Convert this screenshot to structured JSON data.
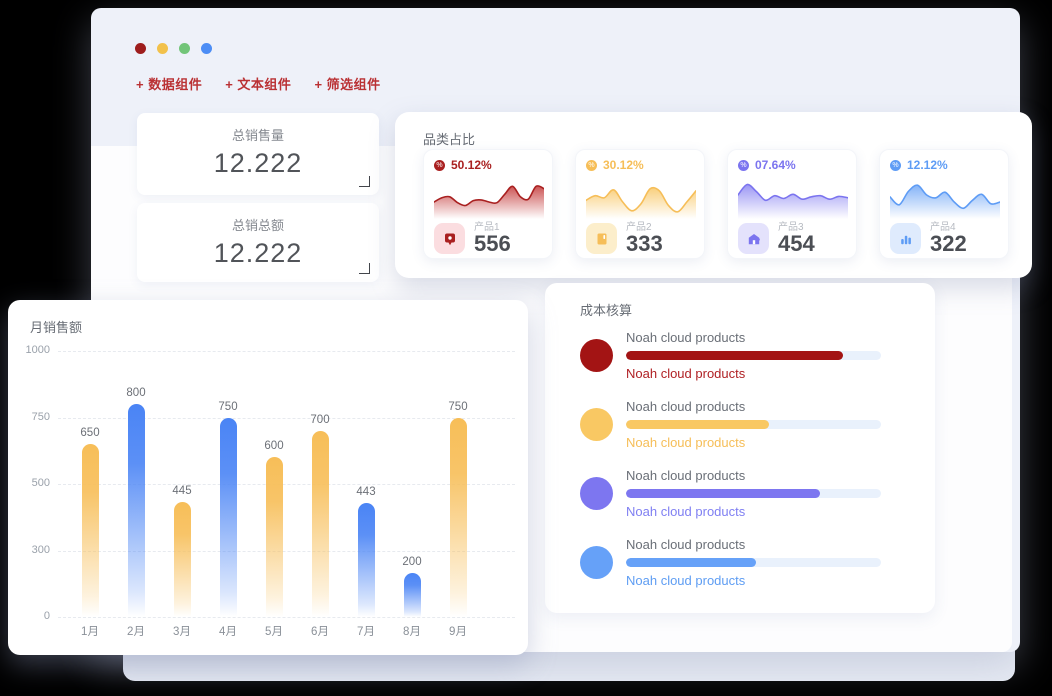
{
  "window": {
    "dots": [
      {
        "name": "red",
        "color": "#9e1d1d"
      },
      {
        "name": "yellow",
        "color": "#f2c14b"
      },
      {
        "name": "green",
        "color": "#72c579"
      },
      {
        "name": "blue",
        "color": "#4c8df5"
      }
    ]
  },
  "toolbar": {
    "accent_color": "#ba3134",
    "buttons": [
      {
        "label": "+ 数据组件"
      },
      {
        "label": "+ 文本组件"
      },
      {
        "label": "+ 筛选组件"
      }
    ]
  },
  "stats": [
    {
      "title": "总销售量",
      "value": "12.222"
    },
    {
      "title": "总销总额",
      "value": "12.222"
    }
  ],
  "category_panel": {
    "title": "品类占比"
  },
  "cost_panel": {
    "title": "成本核算"
  },
  "sales_panel": {
    "title": "月销售额"
  },
  "chart_data": [
    {
      "type": "bar",
      "title": "月销售额",
      "categories": [
        "1月",
        "2月",
        "3月",
        "4月",
        "5月",
        "6月",
        "7月",
        "8月",
        "9月"
      ],
      "values": [
        650,
        800,
        445,
        750,
        600,
        700,
        443,
        200,
        750
      ],
      "bar_colors": [
        "orange",
        "blue",
        "orange",
        "blue",
        "orange",
        "orange",
        "blue",
        "blue",
        "orange"
      ],
      "bar_palette": {
        "orange": "#f7be58",
        "blue": "#4a84f5"
      },
      "yticks": [
        0,
        300,
        500,
        750,
        1000
      ],
      "ylim": [
        0,
        1000
      ],
      "grid": true,
      "note": "y ticks rendered equally spaced (non-linear axis), dashed gridlines, gradient bars fading to transparent at baseline"
    },
    {
      "type": "area",
      "title": "品类占比",
      "legend_position": "none",
      "cards": [
        {
          "percent": "50.12%",
          "product": "产品1",
          "value": "556",
          "color": "#a92020",
          "fill": "#c23434",
          "icon": "tag-icon",
          "icon_bg": "#fbdde0",
          "points": [
            40,
            52,
            55,
            38,
            30,
            44,
            46,
            40,
            38,
            62,
            85,
            55,
            48,
            85,
            78
          ]
        },
        {
          "percent": "30.12%",
          "product": "产品2",
          "value": "333",
          "color": "#f6be58",
          "fill": "#f8c766",
          "icon": "book-icon",
          "icon_bg": "#fceecb",
          "points": [
            45,
            58,
            52,
            75,
            40,
            15,
            35,
            78,
            72,
            30,
            12,
            40,
            72
          ]
        },
        {
          "percent": "07.64%",
          "product": "产品3",
          "value": "454",
          "color": "#7b74ef",
          "fill": "#8a84f2",
          "icon": "store-icon",
          "icon_bg": "#e4e2fc",
          "points": [
            60,
            90,
            70,
            45,
            58,
            50,
            62,
            48,
            55,
            58,
            48,
            56,
            52
          ]
        },
        {
          "percent": "12.12%",
          "product": "产品4",
          "value": "322",
          "color": "#5e9cf5",
          "fill": "#6fa6f6",
          "icon": "bar-chart-icon",
          "icon_bg": "#dfebfd",
          "points": [
            55,
            32,
            70,
            88,
            60,
            52,
            68,
            40,
            22,
            45,
            62,
            35,
            40
          ]
        }
      ]
    },
    {
      "type": "bar",
      "variant": "progress",
      "title": "成本核算",
      "track_color": "#e9f1fc",
      "rows": [
        {
          "label": "Noah cloud products",
          "sublabel": "Noah cloud products",
          "percent": 85,
          "color": "#a31414",
          "text_color": "#b02125"
        },
        {
          "label": "Noah cloud products",
          "sublabel": "Noah cloud products",
          "percent": 56,
          "color": "#f9c863",
          "text_color": "#f6be58"
        },
        {
          "label": "Noah cloud products",
          "sublabel": "Noah cloud products",
          "percent": 76,
          "color": "#7d76f0",
          "text_color": "#7f7ff2"
        },
        {
          "label": "Noah cloud products",
          "sublabel": "Noah cloud products",
          "percent": 51,
          "color": "#66a1f8",
          "text_color": "#5e9df3"
        }
      ]
    }
  ]
}
